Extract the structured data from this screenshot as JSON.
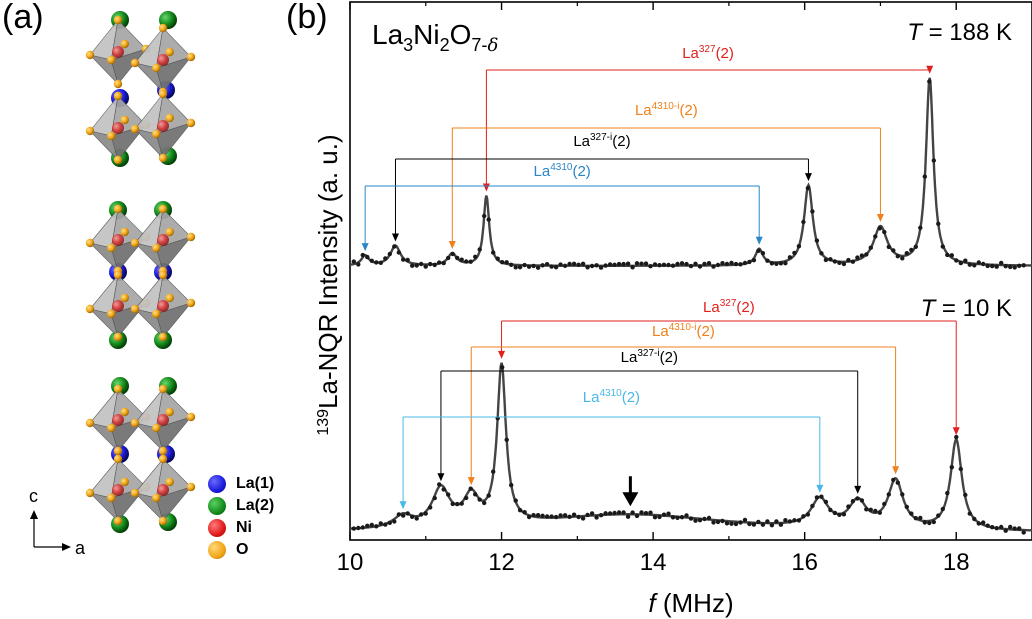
{
  "panels": {
    "a": "(a)",
    "b": "(b)"
  },
  "structure": {
    "legend": [
      {
        "name": "La(1)",
        "color": "#1a1adc"
      },
      {
        "name": "La(2)",
        "color": "#138a1c"
      },
      {
        "name": "Ni",
        "color": "#e01818"
      },
      {
        "name": "O",
        "color": "#f2a516"
      }
    ],
    "axes": {
      "c": "c",
      "a": "a"
    }
  },
  "chart_data": {
    "type": "line",
    "title": "La3Ni2O7-δ",
    "title_parts": {
      "base": "La",
      "s1": "3",
      "mid": "Ni",
      "s2": "2",
      "mid2": "O",
      "s3": "7-",
      "delta": "δ"
    },
    "xlabel_italic": "f",
    "xlabel_rest": " (MHz)",
    "ylabel_sup": "139",
    "ylabel_rest": "La-NQR Intensity (a. u.)",
    "xlim": [
      10,
      19
    ],
    "xticks": [
      "10",
      "12",
      "14",
      "16",
      "18"
    ],
    "tick_values": [
      10,
      12,
      14,
      16,
      18
    ],
    "panels": [
      {
        "temperature_label_italic": "T",
        "temperature_label_rest": " = 188 K",
        "peaks": [
          10.2,
          10.6,
          11.35,
          11.8,
          15.4,
          16.05,
          17.0,
          17.65
        ],
        "transitions": [
          {
            "label": "La",
            "sup": "327",
            "rest": "(2)",
            "color": "#e0201c",
            "from": 11.8,
            "to": 17.65
          },
          {
            "label": "La",
            "sup": "4310-i",
            "rest": "(2)",
            "color": "#f0801c",
            "from": 11.35,
            "to": 17.0
          },
          {
            "label": "La",
            "sup": "327-i",
            "rest": "(2)",
            "color": "#000000",
            "from": 10.6,
            "to": 16.05
          },
          {
            "label": "La",
            "sup": "4310",
            "rest": "(2)",
            "color": "#2a86c8",
            "from": 10.2,
            "to": 15.4
          }
        ]
      },
      {
        "temperature_label_italic": "T",
        "temperature_label_rest": " = 10 K",
        "peaks": [
          10.7,
          11.2,
          11.6,
          12.0,
          13.7,
          16.2,
          16.7,
          17.2,
          18.0
        ],
        "broad_hump_frequency": 13.7,
        "transitions": [
          {
            "label": "La",
            "sup": "327",
            "rest": "(2)",
            "color": "#e0201c",
            "from": 12.0,
            "to": 18.0
          },
          {
            "label": "La",
            "sup": "4310-i",
            "rest": "(2)",
            "color": "#f0801c",
            "from": 11.6,
            "to": 17.2
          },
          {
            "label": "La",
            "sup": "327-i",
            "rest": "(2)",
            "color": "#000000",
            "from": 11.2,
            "to": 16.7
          },
          {
            "label": "La",
            "sup": "4310",
            "rest": "(2)",
            "color": "#4ab8e8",
            "from": 10.7,
            "to": 16.2
          }
        ]
      }
    ]
  }
}
